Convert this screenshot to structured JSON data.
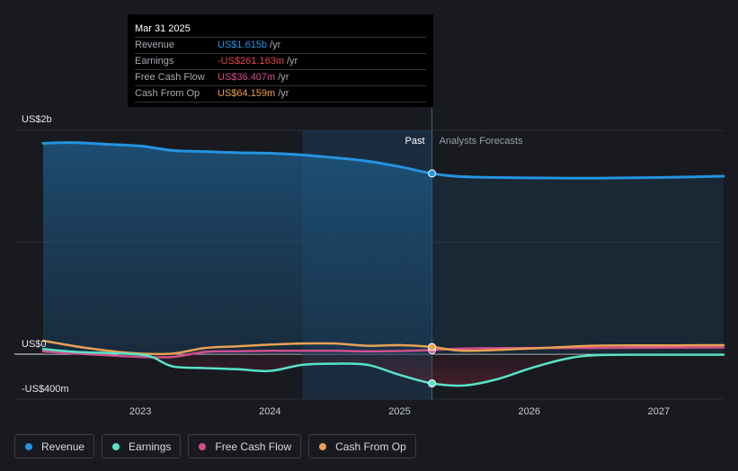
{
  "chart_data": {
    "type": "line",
    "y_axis": {
      "ticks": [
        "US$2b",
        "US$0",
        "-US$400m"
      ],
      "ylim": [
        -400,
        2000
      ],
      "unit": "US$m"
    },
    "x_axis": {
      "ticks": [
        "2023",
        "2024",
        "2025",
        "2026",
        "2027"
      ],
      "xlim": [
        2022.25,
        2027.5
      ]
    },
    "regions": {
      "past_label": "Past",
      "forecast_label": "Analysts Forecasts",
      "divider_x": 2025.25,
      "highlight_start_x": 2024.25
    },
    "series": [
      {
        "name": "Revenue",
        "color": "#2394e0",
        "x": [
          2022.25,
          2022.5,
          2022.75,
          2023.0,
          2023.25,
          2023.5,
          2023.75,
          2024.0,
          2024.25,
          2024.5,
          2024.75,
          2025.0,
          2025.25,
          2025.5,
          2026.0,
          2026.5,
          2027.0,
          2027.5
        ],
        "values": [
          1885,
          1890,
          1875,
          1860,
          1820,
          1810,
          1800,
          1795,
          1780,
          1755,
          1725,
          1675,
          1615,
          1585,
          1575,
          1572,
          1578,
          1590
        ]
      },
      {
        "name": "Earnings",
        "color": "#58e3c8",
        "x": [
          2022.25,
          2022.5,
          2022.75,
          2023.0,
          2023.1,
          2023.25,
          2023.5,
          2023.75,
          2024.0,
          2024.25,
          2024.5,
          2024.75,
          2025.0,
          2025.25,
          2025.5,
          2025.75,
          2026.0,
          2026.25,
          2026.5,
          2027.0,
          2027.5
        ],
        "values": [
          45,
          20,
          10,
          -5,
          -30,
          -110,
          -125,
          -135,
          -150,
          -95,
          -85,
          -95,
          -185,
          -261.163,
          -280,
          -225,
          -130,
          -50,
          -10,
          -5,
          -5
        ]
      },
      {
        "name": "Free Cash Flow",
        "color": "#d14f8e",
        "x": [
          2022.25,
          2022.5,
          2022.75,
          2023.0,
          2023.25,
          2023.5,
          2023.75,
          2024.0,
          2024.25,
          2024.5,
          2024.75,
          2025.0,
          2025.25,
          2025.5,
          2026.0,
          2026.5,
          2027.0,
          2027.5
        ],
        "values": [
          25,
          5,
          -10,
          -25,
          -25,
          20,
          25,
          30,
          30,
          30,
          25,
          28,
          36.407,
          50,
          55,
          55,
          58,
          60
        ]
      },
      {
        "name": "Cash From Op",
        "color": "#e9a153",
        "x": [
          2022.25,
          2022.5,
          2022.75,
          2023.0,
          2023.25,
          2023.5,
          2023.75,
          2024.0,
          2024.25,
          2024.5,
          2024.75,
          2025.0,
          2025.25,
          2025.5,
          2026.0,
          2026.5,
          2027.0,
          2027.5
        ],
        "values": [
          120,
          70,
          30,
          5,
          5,
          55,
          70,
          85,
          95,
          95,
          75,
          80,
          64.159,
          30,
          50,
          75,
          78,
          80
        ]
      }
    ]
  },
  "tooltip": {
    "date": "Mar 31 2025",
    "rows": [
      {
        "label": "Revenue",
        "value": "US$1.615b",
        "unit": "/yr",
        "color": "#2394e0"
      },
      {
        "label": "Earnings",
        "value": "-US$261.163m",
        "unit": "/yr",
        "color": "#e5474f"
      },
      {
        "label": "Free Cash Flow",
        "value": "US$36.407m",
        "unit": "/yr",
        "color": "#d14f8e"
      },
      {
        "label": "Cash From Op",
        "value": "US$64.159m",
        "unit": "/yr",
        "color": "#e9a153"
      }
    ]
  },
  "legend": [
    {
      "label": "Revenue",
      "color": "#2394e0"
    },
    {
      "label": "Earnings",
      "color": "#58e3c8"
    },
    {
      "label": "Free Cash Flow",
      "color": "#d14f8e"
    },
    {
      "label": "Cash From Op",
      "color": "#e9a153"
    }
  ]
}
